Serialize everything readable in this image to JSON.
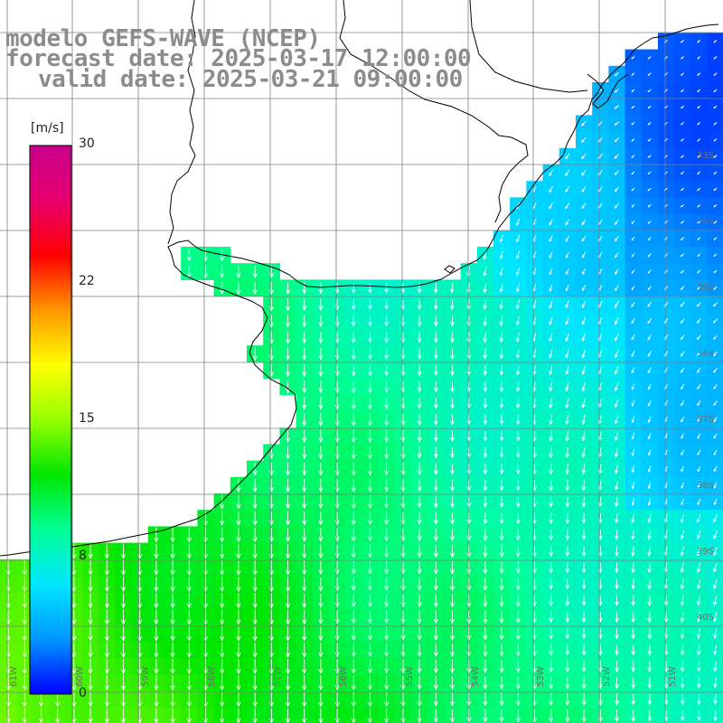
{
  "title": {
    "line1": "modelo GEFS-WAVE (NCEP)",
    "line2": "forecast date: 2025-03-17 12:00:00",
    "line3": "valid date: 2025-03-21 09:00:00"
  },
  "colorbar": {
    "unit": "[m/s]",
    "ticks": [
      "30",
      "22",
      "15",
      "8",
      "0"
    ],
    "tick_values": [
      30,
      22,
      15,
      8,
      0
    ],
    "min": 0,
    "max": 30,
    "colors": [
      "#0000ff",
      "#0096ff",
      "#00e6ff",
      "#00ff96",
      "#00e600",
      "#96ff00",
      "#ffff00",
      "#ff9600",
      "#ff0000",
      "#e6006e",
      "#c8008c"
    ]
  },
  "grid": {
    "lat_labels": [
      "33S",
      "34S",
      "35S",
      "36S",
      "37S",
      "38S",
      "39S",
      "40S"
    ],
    "lon_labels": [
      "61W",
      "60W",
      "59W",
      "58W",
      "57W",
      "56W",
      "55W",
      "54W",
      "53W",
      "52W",
      "51W"
    ]
  },
  "colors": {
    "background": "#ffffff",
    "coast": "#000000",
    "gridline": "#7f7f7f",
    "arrow": "#ffffff",
    "title": "#8c8c8c"
  }
}
